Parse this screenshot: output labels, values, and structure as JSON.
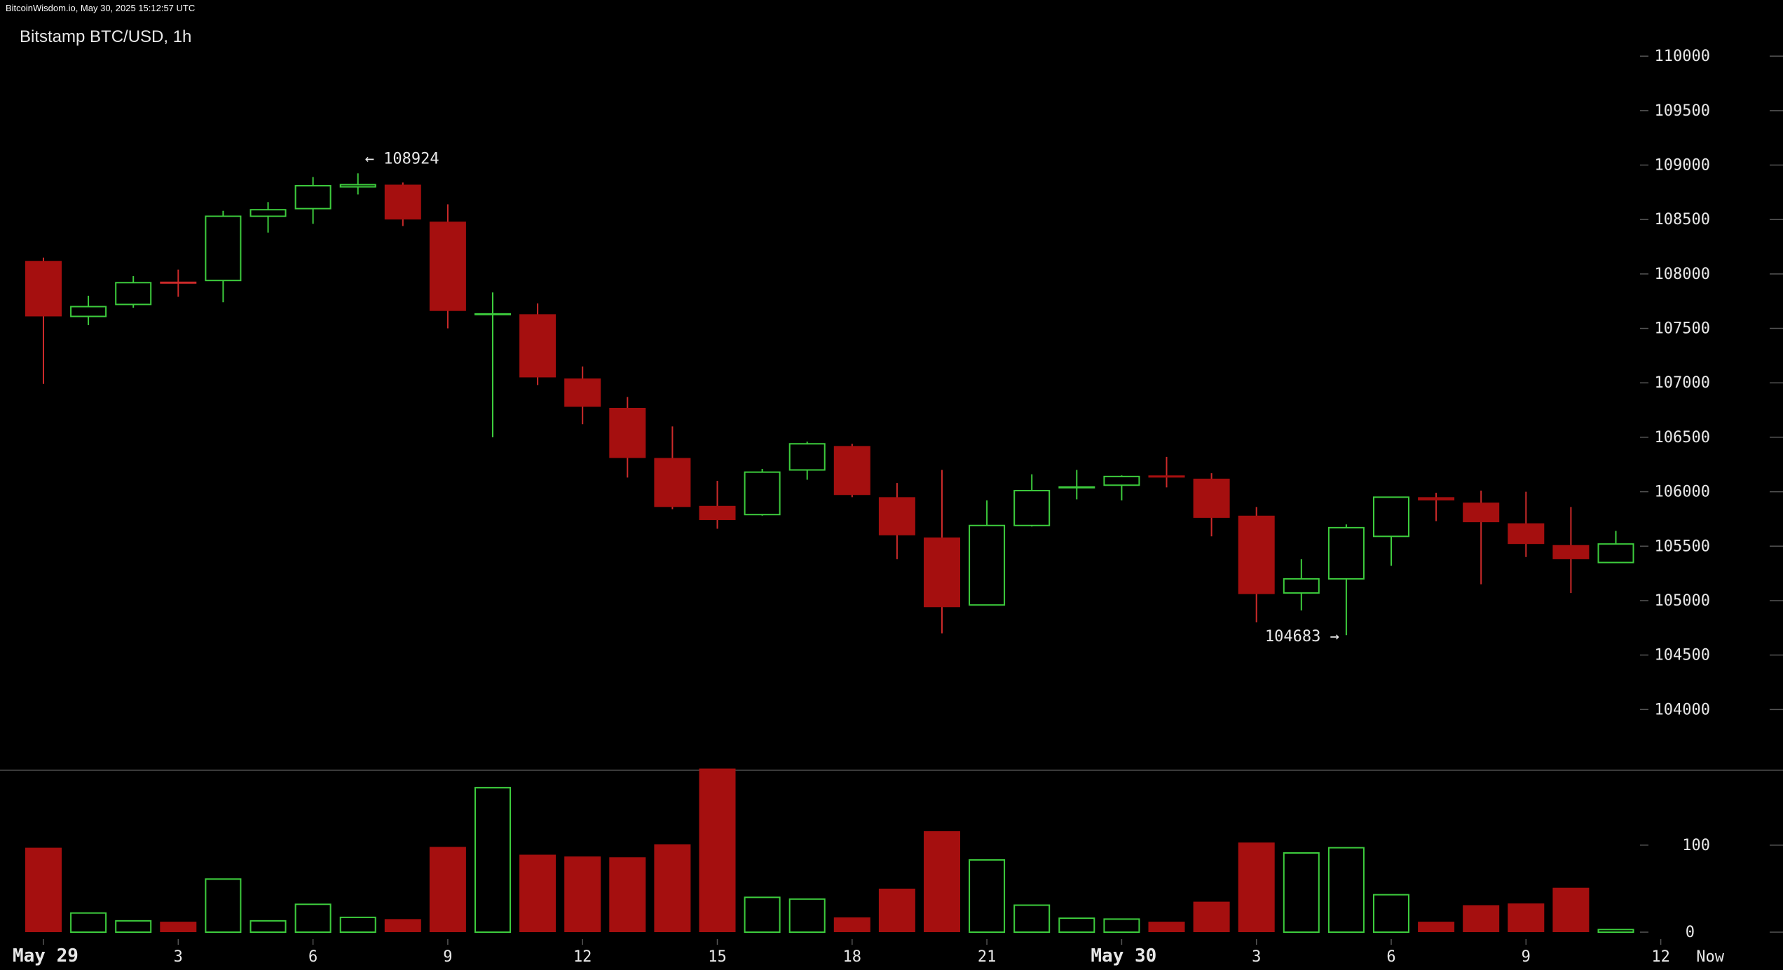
{
  "header": {
    "timestamp": "BitcoinWisdom.io, May 30, 2025 15:12:57 UTC",
    "title": "Bitstamp BTC/USD, 1h"
  },
  "colors": {
    "background": "#000000",
    "up": "#3dcc3d",
    "down": "#a50f0f",
    "down_wick": "#cc2a2a",
    "grid_tick": "#555555",
    "text": "#e8e8e8",
    "divider": "#3a3a3a"
  },
  "chart_data": [
    {
      "type": "candlestick",
      "title": "Bitstamp BTC/USD, 1h",
      "ylim": [
        103500,
        110400
      ],
      "y_ticks": [
        104000,
        104500,
        105000,
        105500,
        106000,
        106500,
        107000,
        107500,
        108000,
        108500,
        109000,
        109500,
        110000
      ],
      "x_ticks": [
        {
          "label": "May 29",
          "index": 0
        },
        {
          "label": "3",
          "index": 3
        },
        {
          "label": "6",
          "index": 6
        },
        {
          "label": "9",
          "index": 9
        },
        {
          "label": "12",
          "index": 12
        },
        {
          "label": "15",
          "index": 15
        },
        {
          "label": "18",
          "index": 18
        },
        {
          "label": "21",
          "index": 21
        },
        {
          "label": "May 30",
          "index": 24
        },
        {
          "label": "3",
          "index": 27
        },
        {
          "label": "6",
          "index": 30
        },
        {
          "label": "9",
          "index": 33
        },
        {
          "label": "12",
          "index": 36
        },
        {
          "label": "Now",
          "index": 37.1
        }
      ],
      "annotations": [
        {
          "text": "← 108924",
          "index": 7,
          "value": 108924
        },
        {
          "text": "104683 →",
          "index": 29,
          "value": 104683
        }
      ],
      "candles": [
        {
          "o": 108120,
          "h": 108150,
          "l": 106990,
          "c": 107610
        },
        {
          "o": 107610,
          "h": 107800,
          "l": 107530,
          "c": 107700
        },
        {
          "o": 107720,
          "h": 107980,
          "l": 107690,
          "c": 107920
        },
        {
          "o": 107920,
          "h": 108040,
          "l": 107790,
          "c": 107910
        },
        {
          "o": 107940,
          "h": 108580,
          "l": 107740,
          "c": 108530
        },
        {
          "o": 108530,
          "h": 108660,
          "l": 108380,
          "c": 108590
        },
        {
          "o": 108600,
          "h": 108890,
          "l": 108460,
          "c": 108810
        },
        {
          "o": 108800,
          "h": 108924,
          "l": 108730,
          "c": 108820
        },
        {
          "o": 108820,
          "h": 108840,
          "l": 108440,
          "c": 108500
        },
        {
          "o": 108480,
          "h": 108640,
          "l": 107500,
          "c": 107660
        },
        {
          "o": 107630,
          "h": 107830,
          "l": 106500,
          "c": 107630
        },
        {
          "o": 107630,
          "h": 107730,
          "l": 106980,
          "c": 107050
        },
        {
          "o": 107040,
          "h": 107150,
          "l": 106620,
          "c": 106780
        },
        {
          "o": 106770,
          "h": 106870,
          "l": 106130,
          "c": 106310
        },
        {
          "o": 106310,
          "h": 106600,
          "l": 105840,
          "c": 105860
        },
        {
          "o": 105870,
          "h": 106100,
          "l": 105660,
          "c": 105740
        },
        {
          "o": 105790,
          "h": 106210,
          "l": 105780,
          "c": 106180
        },
        {
          "o": 106200,
          "h": 106460,
          "l": 106110,
          "c": 106440
        },
        {
          "o": 106420,
          "h": 106440,
          "l": 105950,
          "c": 105970
        },
        {
          "o": 105950,
          "h": 106080,
          "l": 105380,
          "c": 105600
        },
        {
          "o": 105580,
          "h": 106200,
          "l": 104700,
          "c": 104940
        },
        {
          "o": 104960,
          "h": 105920,
          "l": 104960,
          "c": 105690
        },
        {
          "o": 105690,
          "h": 106160,
          "l": 105680,
          "c": 106010
        },
        {
          "o": 106030,
          "h": 106200,
          "l": 105930,
          "c": 106040
        },
        {
          "o": 106060,
          "h": 106150,
          "l": 105920,
          "c": 106140
        },
        {
          "o": 106150,
          "h": 106320,
          "l": 106040,
          "c": 106130
        },
        {
          "o": 106120,
          "h": 106170,
          "l": 105590,
          "c": 105760
        },
        {
          "o": 105780,
          "h": 105860,
          "l": 104800,
          "c": 105060
        },
        {
          "o": 105070,
          "h": 105380,
          "l": 104910,
          "c": 105200
        },
        {
          "o": 105200,
          "h": 105700,
          "l": 104683,
          "c": 105670
        },
        {
          "o": 105590,
          "h": 105950,
          "l": 105320,
          "c": 105950
        },
        {
          "o": 105950,
          "h": 105990,
          "l": 105730,
          "c": 105920
        },
        {
          "o": 105900,
          "h": 106010,
          "l": 105150,
          "c": 105720
        },
        {
          "o": 105710,
          "h": 106000,
          "l": 105400,
          "c": 105520
        },
        {
          "o": 105510,
          "h": 105860,
          "l": 105070,
          "c": 105380
        },
        {
          "o": 105350,
          "h": 105640,
          "l": 105350,
          "c": 105520
        }
      ]
    },
    {
      "type": "bar",
      "title": "",
      "ylim": [
        0,
        182
      ],
      "y_ticks": [
        0,
        100
      ],
      "volumes": [
        97,
        22,
        13,
        12,
        61,
        13,
        32,
        17,
        15,
        98,
        166,
        89,
        87,
        86,
        101,
        188,
        40,
        38,
        17,
        50,
        116,
        83,
        31,
        16,
        15,
        12,
        35,
        103,
        91,
        97,
        43,
        12,
        31,
        33,
        51,
        3
      ]
    }
  ]
}
